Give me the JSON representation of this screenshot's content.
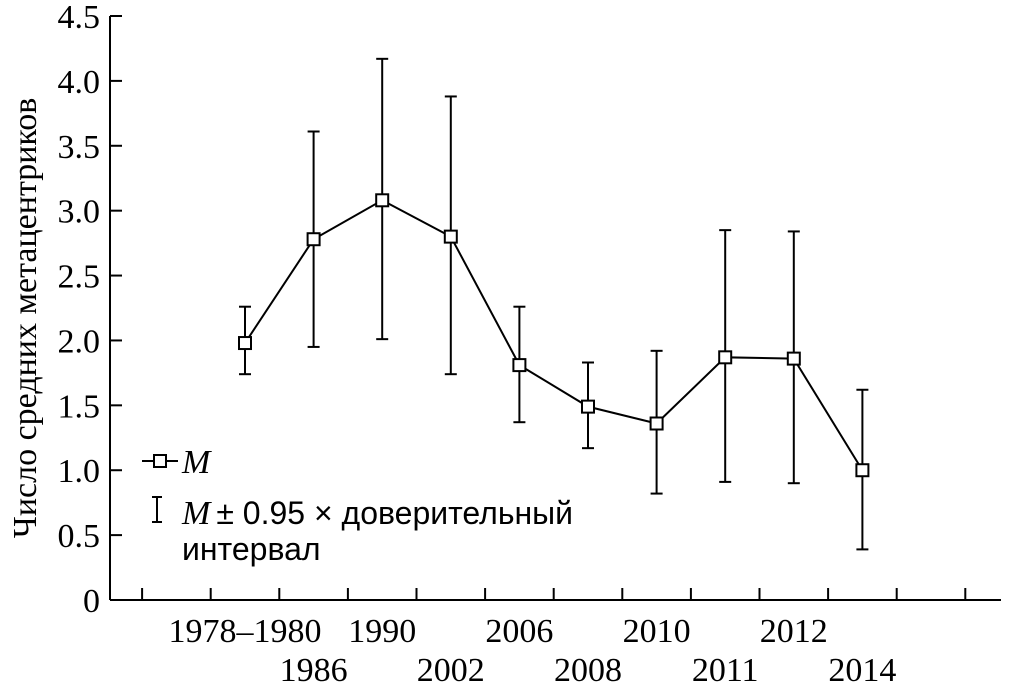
{
  "chart_data": {
    "type": "line",
    "title": "",
    "ylabel": "Число средних метацентриков",
    "xlabel": "",
    "ylim": [
      0,
      4.5
    ],
    "y_ticks": [
      "0",
      "0.5",
      "1.0",
      "1.5",
      "2.0",
      "2.5",
      "3.0",
      "3.5",
      "4.0",
      "4.5"
    ],
    "categories": [
      "1978–1980",
      "1986",
      "1990",
      "2002",
      "2006",
      "2008",
      "2010",
      "2011",
      "2012",
      "2014"
    ],
    "values": [
      1.98,
      2.78,
      3.08,
      2.8,
      1.81,
      1.49,
      1.36,
      1.87,
      1.86,
      1.0
    ],
    "error_low": [
      1.74,
      1.95,
      2.01,
      1.74,
      1.37,
      1.17,
      0.82,
      0.91,
      0.9,
      0.39
    ],
    "error_high": [
      2.26,
      3.61,
      4.17,
      3.88,
      2.26,
      1.83,
      1.92,
      2.85,
      2.84,
      1.62
    ],
    "legend": {
      "mean_symbol": "M",
      "ci_symbol": "M",
      "ci_text": "± 0.95 × доверительный",
      "ci_text_line2": "интервал",
      "placement": "bottom-left"
    },
    "grid": false,
    "marker": "open-square",
    "line_color": "#000000"
  }
}
